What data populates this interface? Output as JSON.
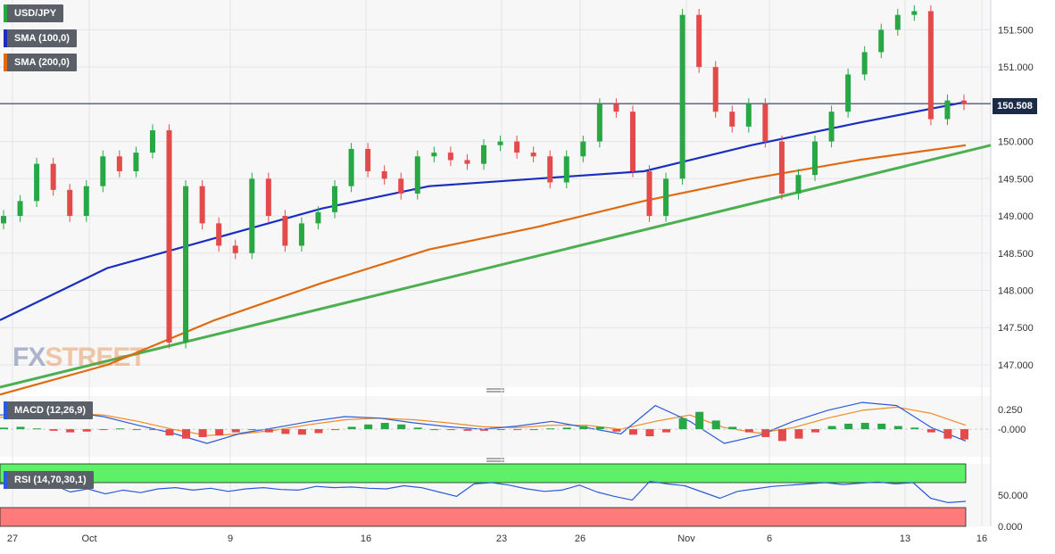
{
  "legend": {
    "instrument": "USD/JPY",
    "sma100": "SMA (100,0)",
    "sma200": "SMA (200,0)",
    "macd": "MACD (12,26,9)",
    "rsi": "RSI (14,70,30,1)"
  },
  "current_price": "150.508",
  "watermark": {
    "fx": "FX",
    "street": "STREET"
  },
  "colors": {
    "bull": "#27a844",
    "bear": "#e34a4a",
    "sma100": "#1a2fbf",
    "sma200": "#e06a10",
    "trendline": "#4caf50",
    "macd_line": "#2b5bd8",
    "signal_line": "#f08a24",
    "rsi_line": "#2b5bd8",
    "overbought": "#5ef068",
    "oversold": "#ff7b7b"
  },
  "chart_data": [
    {
      "type": "line",
      "title": "USD/JPY",
      "y_ticks": [
        "151.500",
        "151.000",
        "150.500",
        "150.000",
        "149.500",
        "149.000",
        "148.500",
        "148.000",
        "147.500",
        "147.000"
      ],
      "ylim": [
        146.7,
        151.9
      ],
      "x_ticks": [
        "27",
        "Oct",
        "9",
        "16",
        "23",
        "26",
        "Nov",
        "6",
        "13",
        "16"
      ],
      "series": [
        {
          "name": "USD/JPY",
          "values": [
            149.0,
            149.2,
            149.7,
            149.35,
            149.0,
            149.4,
            149.8,
            149.6,
            149.85,
            150.15,
            147.3,
            149.4,
            148.9,
            148.6,
            148.5,
            149.5,
            149.0,
            148.6,
            148.9,
            149.05,
            149.4,
            149.9,
            149.6,
            149.5,
            149.3,
            149.8,
            149.85,
            149.75,
            149.7,
            149.95,
            150.0,
            149.85,
            149.8,
            149.45,
            149.8,
            150.0,
            150.5,
            150.4,
            149.6,
            149.0,
            149.5,
            151.7,
            151.0,
            150.4,
            150.2,
            150.5,
            150.0,
            149.3,
            149.55,
            150.0,
            150.4,
            150.9,
            151.2,
            151.5,
            151.7,
            151.75,
            150.3,
            150.55,
            150.5
          ]
        },
        {
          "name": "SMA (100,0)",
          "values": [
            147.6,
            148.3,
            148.7,
            149.1,
            149.4,
            149.5,
            149.6,
            149.95,
            150.25,
            150.53
          ]
        },
        {
          "name": "SMA (200,0)",
          "values": [
            146.6,
            147.0,
            147.6,
            148.1,
            148.55,
            148.85,
            149.2,
            149.5,
            149.75,
            149.95
          ]
        },
        {
          "name": "trendline",
          "values": [
            146.7,
            149.95
          ]
        }
      ]
    },
    {
      "type": "bar",
      "title": "MACD (12,26,9)",
      "y_ticks": [
        "0.250",
        "-0.000"
      ],
      "ylim": [
        -0.35,
        0.42
      ],
      "histogram": [
        0.02,
        0.03,
        0.01,
        -0.02,
        -0.04,
        -0.03,
        -0.01,
        0.01,
        0.0,
        -0.01,
        -0.08,
        -0.12,
        -0.1,
        -0.08,
        -0.04,
        0.0,
        -0.04,
        -0.06,
        -0.07,
        -0.05,
        -0.01,
        0.03,
        0.06,
        0.08,
        0.06,
        0.02,
        0.0,
        -0.01,
        -0.02,
        -0.02,
        0.0,
        -0.01,
        0.0,
        0.01,
        0.02,
        0.04,
        0.03,
        -0.03,
        -0.07,
        -0.09,
        -0.04,
        0.14,
        0.22,
        0.11,
        0.03,
        -0.04,
        -0.1,
        -0.15,
        -0.12,
        -0.04,
        0.04,
        0.07,
        0.08,
        0.07,
        0.04,
        0.02,
        -0.04,
        -0.12,
        -0.13
      ],
      "macd_line": [
        0.18,
        0.2,
        0.22,
        0.16,
        0.05,
        -0.05,
        -0.18,
        -0.05,
        0.02,
        0.1,
        0.16,
        0.14,
        0.08,
        0.03,
        0.0,
        0.04,
        0.1,
        0.02,
        -0.06,
        0.3,
        0.1,
        -0.18,
        -0.08,
        0.1,
        0.24,
        0.34,
        0.3,
        0.02,
        -0.15
      ],
      "signal_line": [
        0.15,
        0.18,
        0.2,
        0.18,
        0.1,
        0.0,
        -0.08,
        -0.06,
        -0.01,
        0.06,
        0.12,
        0.14,
        0.12,
        0.08,
        0.03,
        0.02,
        0.05,
        0.05,
        0.0,
        0.1,
        0.18,
        0.02,
        -0.05,
        0.02,
        0.14,
        0.24,
        0.28,
        0.2,
        0.05
      ]
    },
    {
      "type": "line",
      "title": "RSI (14,70,30,1)",
      "y_ticks": [
        "50.000",
        "0.000"
      ],
      "ylim": [
        0,
        100
      ],
      "bands": {
        "overbought": [
          70,
          100
        ],
        "oversold": [
          0,
          30
        ]
      },
      "values": [
        68,
        69,
        66,
        67,
        55,
        60,
        52,
        58,
        54,
        60,
        62,
        58,
        61,
        56,
        60,
        62,
        59,
        58,
        64,
        62,
        63,
        61,
        60,
        65,
        62,
        55,
        48,
        68,
        70,
        66,
        60,
        56,
        58,
        66,
        55,
        48,
        42,
        72,
        68,
        65,
        55,
        45,
        56,
        60,
        64,
        66,
        68,
        70,
        67,
        69,
        71,
        68,
        70,
        45,
        38,
        40
      ]
    }
  ]
}
